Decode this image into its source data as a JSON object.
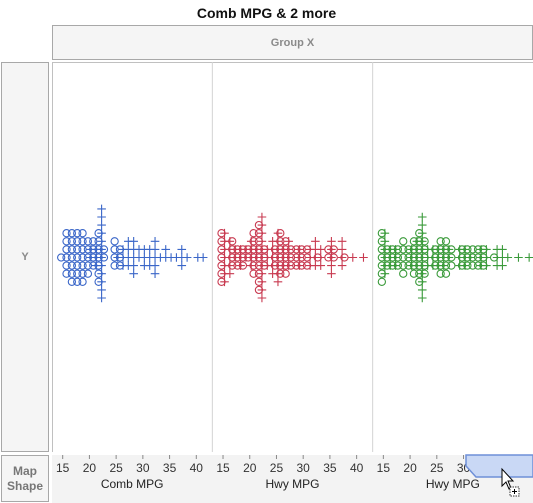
{
  "title": "Comb MPG & 2 more",
  "drop_zones": {
    "group_x": "Group X",
    "y": "Y",
    "map_shape": "Map\nShape"
  },
  "chart_data": {
    "type": "scatter",
    "subtype": "beeswarm",
    "grid": false,
    "ticks": [
      15,
      20,
      25,
      30,
      35,
      40
    ],
    "panels": [
      {
        "name": "Comb MPG",
        "color": "#3a66c8",
        "xlim": [
          13,
          43
        ],
        "circles": [
          [
            15,
            1
          ],
          [
            16,
            6
          ],
          [
            17,
            7
          ],
          [
            18,
            7
          ],
          [
            19,
            7
          ],
          [
            20,
            5
          ],
          [
            21,
            4
          ],
          [
            22,
            7
          ],
          [
            23,
            2
          ],
          [
            25,
            4
          ],
          [
            26,
            3
          ]
        ],
        "pluses": [
          [
            20,
            2
          ],
          [
            21,
            3
          ],
          [
            22,
            12
          ],
          [
            25,
            1
          ],
          [
            26,
            3
          ],
          [
            27,
            4
          ],
          [
            28,
            5
          ],
          [
            29,
            2
          ],
          [
            30,
            3
          ],
          [
            31,
            3
          ],
          [
            32,
            5
          ],
          [
            33,
            1
          ],
          [
            34,
            2
          ],
          [
            35,
            1
          ],
          [
            36,
            1
          ],
          [
            37,
            3
          ],
          [
            38,
            1
          ],
          [
            40,
            1
          ],
          [
            41,
            1
          ]
        ]
      },
      {
        "name": "Hwy MPG",
        "color": "#c83a50",
        "xlim": [
          13,
          43
        ],
        "circles": [
          [
            15,
            7
          ],
          [
            17,
            4
          ],
          [
            18,
            3
          ],
          [
            19,
            3
          ],
          [
            20,
            2
          ],
          [
            21,
            6
          ],
          [
            22,
            9
          ],
          [
            23,
            3
          ],
          [
            25,
            3
          ],
          [
            26,
            6
          ],
          [
            27,
            5
          ],
          [
            28,
            3
          ],
          [
            29,
            3
          ],
          [
            30,
            3
          ],
          [
            31,
            3
          ],
          [
            33,
            1
          ],
          [
            35,
            2
          ],
          [
            36,
            2
          ],
          [
            38,
            1
          ]
        ],
        "pluses": [
          [
            15,
            7
          ],
          [
            16,
            5
          ],
          [
            17,
            2
          ],
          [
            18,
            3
          ],
          [
            19,
            2
          ],
          [
            20,
            4
          ],
          [
            21,
            2
          ],
          [
            22,
            11
          ],
          [
            23,
            3
          ],
          [
            24,
            5
          ],
          [
            25,
            7
          ],
          [
            26,
            3
          ],
          [
            27,
            4
          ],
          [
            29,
            3
          ],
          [
            31,
            3
          ],
          [
            32,
            4
          ],
          [
            33,
            3
          ],
          [
            35,
            5
          ],
          [
            37,
            4
          ],
          [
            39,
            1
          ],
          [
            41,
            1
          ]
        ]
      },
      {
        "name": "Hwy MPG",
        "color": "#3a9a3a",
        "xlim": [
          13,
          43
        ],
        "circles": [
          [
            15,
            7
          ],
          [
            16,
            3
          ],
          [
            17,
            3
          ],
          [
            18,
            3
          ],
          [
            19,
            5
          ],
          [
            20,
            3
          ],
          [
            21,
            5
          ],
          [
            22,
            7
          ],
          [
            23,
            5
          ],
          [
            25,
            3
          ],
          [
            26,
            5
          ],
          [
            27,
            5
          ],
          [
            28,
            3
          ],
          [
            30,
            3
          ],
          [
            31,
            3
          ],
          [
            32,
            3
          ],
          [
            33,
            3
          ],
          [
            34,
            3
          ],
          [
            36,
            1
          ]
        ],
        "pluses": [
          [
            15,
            6
          ],
          [
            16,
            3
          ],
          [
            17,
            3
          ],
          [
            20,
            3
          ],
          [
            21,
            4
          ],
          [
            22,
            11
          ],
          [
            23,
            3
          ],
          [
            24,
            3
          ],
          [
            25,
            3
          ],
          [
            26,
            3
          ],
          [
            27,
            2
          ],
          [
            29,
            3
          ],
          [
            30,
            3
          ],
          [
            31,
            1
          ],
          [
            33,
            3
          ],
          [
            34,
            3
          ],
          [
            36,
            3
          ],
          [
            37,
            3
          ],
          [
            38,
            1
          ],
          [
            40,
            1
          ],
          [
            42,
            1
          ]
        ]
      }
    ]
  }
}
